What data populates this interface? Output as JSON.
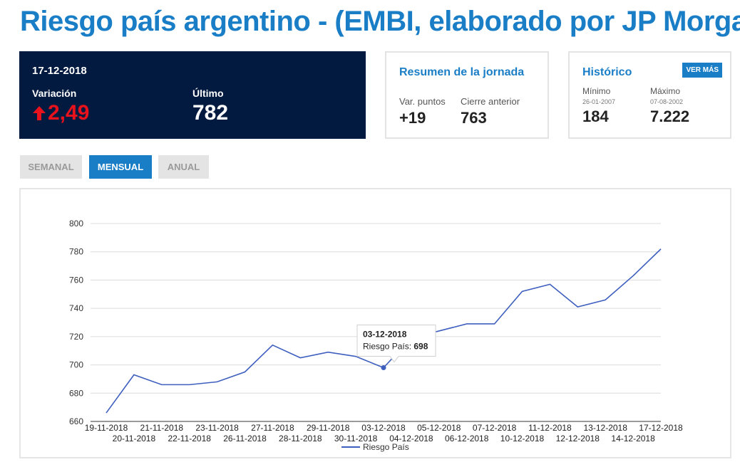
{
  "page": {
    "title": "Riesgo país argentino - (EMBI, elaborado por JP Morgan)"
  },
  "summary": {
    "date": "17-12-2018",
    "variacion_label": "Variación",
    "variacion_value": "2,49",
    "ultimo_label": "Último",
    "ultimo_value": "782"
  },
  "resumen": {
    "title": "Resumen de la jornada",
    "var_puntos_label": "Var. puntos",
    "var_puntos_value": "+19",
    "cierre_label": "Cierre anterior",
    "cierre_value": "763"
  },
  "historico": {
    "title": "Histórico",
    "ver_mas": "VER MÁS",
    "minimo_label": "Mínimo",
    "minimo_date": "26-01-2007",
    "minimo_value": "184",
    "maximo_label": "Máximo",
    "maximo_date": "07-08-2002",
    "maximo_value": "7.222"
  },
  "tabs": [
    {
      "label": "SEMANAL",
      "active": false
    },
    {
      "label": "MENSUAL",
      "active": true
    },
    {
      "label": "ANUAL",
      "active": false
    }
  ],
  "colors": {
    "brand": "#1a7ec7",
    "dark_card": "#021a40",
    "negative": "#e8121d",
    "series": "#3f5fbf"
  },
  "chart_data": {
    "type": "line",
    "x": [
      "19-11-2018",
      "20-11-2018",
      "21-11-2018",
      "22-11-2018",
      "23-11-2018",
      "26-11-2018",
      "27-11-2018",
      "28-11-2018",
      "29-11-2018",
      "30-11-2018",
      "03-12-2018",
      "04-12-2018",
      "05-12-2018",
      "06-12-2018",
      "07-12-2018",
      "10-12-2018",
      "11-12-2018",
      "12-12-2018",
      "13-12-2018",
      "14-12-2018",
      "17-12-2018"
    ],
    "series": [
      {
        "name": "Riesgo País",
        "values": [
          666,
          693,
          686,
          686,
          688,
          695,
          714,
          705,
          709,
          706,
          698,
          719,
          724,
          729,
          729,
          752,
          757,
          741,
          746,
          763,
          782
        ]
      }
    ],
    "ylim": [
      660,
      800
    ],
    "yticks": [
      660,
      680,
      700,
      720,
      740,
      760,
      780,
      800
    ],
    "grid": true,
    "legend": "bottom",
    "tooltip": {
      "date": "03-12-2018",
      "label": "Riesgo País:",
      "value": "698"
    }
  }
}
